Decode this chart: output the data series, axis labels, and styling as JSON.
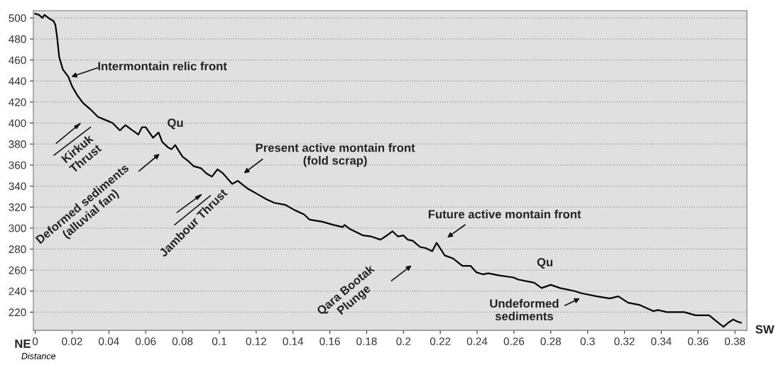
{
  "chart_data": {
    "type": "line",
    "xlabel": "Distance",
    "x": [
      0,
      0.002,
      0.004,
      0.005,
      0.008,
      0.01,
      0.011,
      0.012,
      0.013,
      0.015,
      0.018,
      0.02,
      0.023,
      0.026,
      0.03,
      0.034,
      0.038,
      0.042,
      0.046,
      0.049,
      0.052,
      0.056,
      0.058,
      0.06,
      0.064,
      0.067,
      0.069,
      0.072,
      0.074,
      0.076,
      0.08,
      0.083,
      0.086,
      0.09,
      0.093,
      0.096,
      0.099,
      0.102,
      0.107,
      0.11,
      0.115,
      0.121,
      0.126,
      0.13,
      0.136,
      0.141,
      0.146,
      0.149,
      0.156,
      0.162,
      0.167,
      0.168,
      0.171,
      0.178,
      0.1825,
      0.1875,
      0.191,
      0.194,
      0.197,
      0.2,
      0.2023,
      0.205,
      0.209,
      0.212,
      0.2156,
      0.218,
      0.2224,
      0.227,
      0.232,
      0.2365,
      0.2395,
      0.243,
      0.246,
      0.252,
      0.2597,
      0.2624,
      0.271,
      0.275,
      0.28,
      0.285,
      0.293,
      0.2966,
      0.305,
      0.312,
      0.3167,
      0.322,
      0.328,
      0.3357,
      0.3384,
      0.343,
      0.3525,
      0.3586,
      0.366,
      0.3688,
      0.3738,
      0.3764,
      0.379,
      0.3814,
      0.3833
    ],
    "series": [
      {
        "color": "#000000",
        "values": [
          504,
          503,
          500,
          503,
          499,
          497,
          493,
          480,
          463,
          451,
          444,
          435,
          426,
          419,
          413,
          406,
          403,
          400,
          393,
          398,
          394,
          389,
          396,
          396,
          386,
          391,
          382,
          377,
          375,
          379,
          368,
          364,
          359,
          357,
          352,
          349,
          356,
          352,
          342,
          345,
          338,
          332,
          327,
          324,
          322,
          317,
          313,
          308,
          306,
          303,
          301,
          303,
          299,
          293,
          292,
          289,
          293,
          297,
          292,
          293,
          289,
          288,
          282,
          281,
          278,
          286,
          274,
          271,
          264,
          264,
          258,
          256,
          257,
          255,
          253,
          251,
          248,
          243,
          246,
          243,
          240,
          238,
          235,
          233,
          235,
          229,
          227,
          221,
          222,
          220,
          220,
          217,
          217,
          213,
          206,
          210,
          213,
          211,
          210
        ]
      }
    ],
    "xlim": [
      -0.001,
      0.3865
    ],
    "ylim": [
      202.7,
      507
    ],
    "xticks": [
      0,
      0.02,
      0.04,
      0.06,
      0.08,
      0.1,
      0.12,
      0.14,
      0.16,
      0.18,
      0.2,
      0.22,
      0.24,
      0.26,
      0.28,
      0.3,
      0.32,
      0.34,
      0.36,
      0.38
    ],
    "yticks": [
      220,
      240,
      260,
      280,
      300,
      320,
      340,
      360,
      380,
      400,
      420,
      440,
      460,
      480,
      500
    ],
    "grid": "y",
    "marker": "none",
    "line_style": "solid",
    "annotations": [
      "Intermontain relic front",
      "Deformed sediments\n(alluvial fan)",
      "Present active montain front\n(fold scrap)",
      "Future active montain front",
      "Qara Bootak\nPlunge",
      "Undeformed\nsediments",
      "Kirkuk\nThrust",
      "Jambour Thrust",
      "Qu",
      "Qu",
      "NE",
      "SW"
    ]
  }
}
